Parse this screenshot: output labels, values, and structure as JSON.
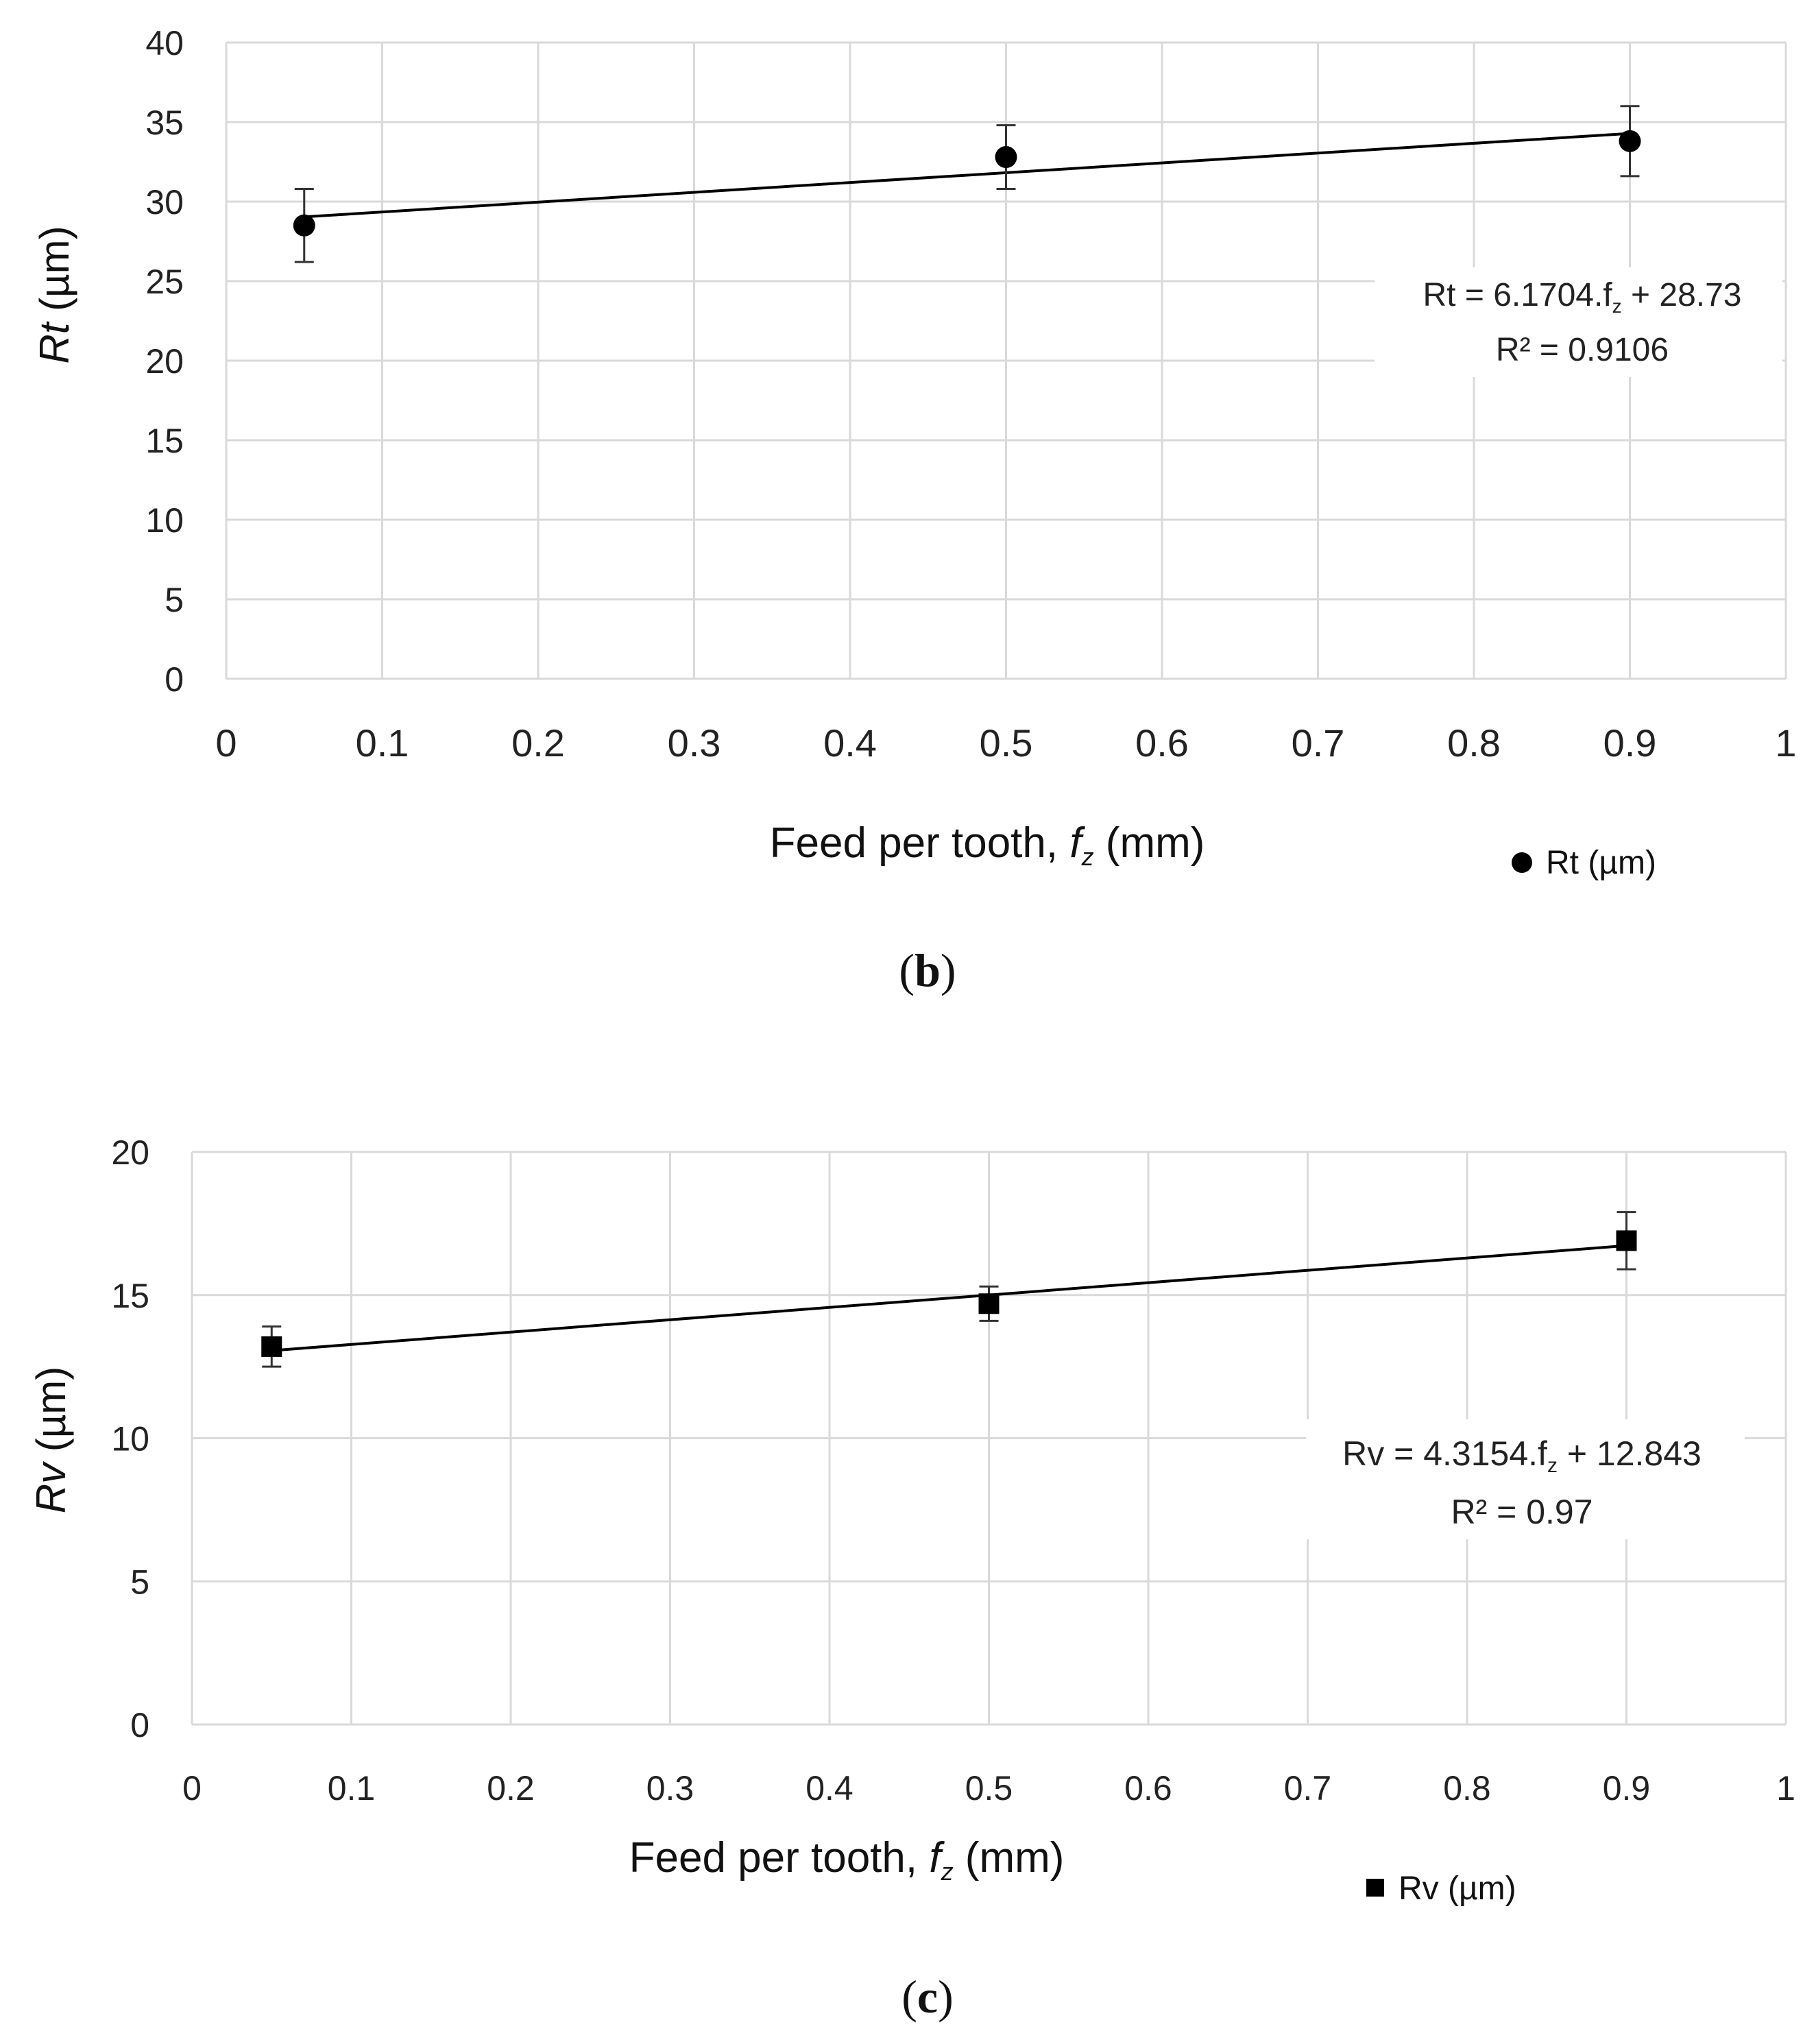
{
  "chart_data": [
    {
      "type": "scatter",
      "panel_label": "(b)",
      "panel_paren_open": "(",
      "panel_letter": "b",
      "panel_paren_close": ")",
      "ylabel_var": "Rt",
      "ylabel_unit": " (µm)",
      "xlabel_text": "Feed per tooth, ",
      "xlabel_var": "f",
      "xlabel_sub": "z",
      "xlabel_unit": " (mm)",
      "xlim": [
        0,
        1
      ],
      "ylim": [
        0,
        40
      ],
      "x_ticks": [
        "0",
        "0.1",
        "0.2",
        "0.3",
        "0.4",
        "0.5",
        "0.6",
        "0.7",
        "0.8",
        "0.9",
        "1"
      ],
      "y_ticks": [
        "0",
        "5",
        "10",
        "15",
        "20",
        "25",
        "30",
        "35",
        "40"
      ],
      "grid": true,
      "marker": "circle",
      "series": [
        {
          "name": "Rt (µm)",
          "x": [
            0.05,
            0.5,
            0.9
          ],
          "y": [
            28.5,
            32.8,
            33.8
          ],
          "err": [
            2.3,
            2.0,
            2.2
          ]
        }
      ],
      "trendline": {
        "slope": 6.1704,
        "intercept": 28.73
      },
      "equation_pre": "Rt = 6.1704.f",
      "equation_sub": "z",
      "equation_post": " + 28.73",
      "r2_text": "R² = 0.9106",
      "legend_label": "Rt (µm)",
      "legend_position": "bottom-right"
    },
    {
      "type": "scatter",
      "panel_label": "(c)",
      "panel_paren_open": "(",
      "panel_letter": "c",
      "panel_paren_close": ")",
      "ylabel_var": "Rv",
      "ylabel_unit": " (µm)",
      "xlabel_text": "Feed per tooth, ",
      "xlabel_var": "f",
      "xlabel_sub": "z",
      "xlabel_unit": " (mm)",
      "xlim": [
        0,
        1
      ],
      "ylim": [
        0,
        20
      ],
      "x_ticks": [
        "0",
        "0.1",
        "0.2",
        "0.3",
        "0.4",
        "0.5",
        "0.6",
        "0.7",
        "0.8",
        "0.9",
        "1"
      ],
      "y_ticks": [
        "0",
        "5",
        "10",
        "15",
        "20"
      ],
      "grid": true,
      "marker": "square",
      "series": [
        {
          "name": "Rv (µm)",
          "x": [
            0.05,
            0.5,
            0.9
          ],
          "y": [
            13.2,
            14.7,
            16.9
          ],
          "err": [
            0.7,
            0.6,
            1.0
          ]
        }
      ],
      "trendline": {
        "slope": 4.3154,
        "intercept": 12.843
      },
      "equation_pre": "Rv = 4.3154.f",
      "equation_sub": "z",
      "equation_post": " + 12.843",
      "r2_text": "R² = 0.97",
      "legend_label": "Rv (µm)",
      "legend_position": "bottom-right"
    }
  ]
}
